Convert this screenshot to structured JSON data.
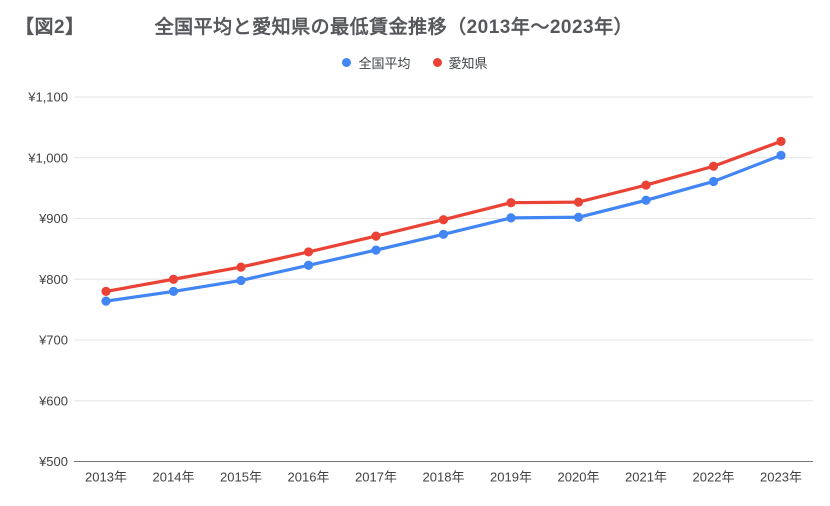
{
  "header": {
    "figure_label": "【図2】",
    "title": "全国平均と愛知県の最低賃金推移（2013年～2023年）"
  },
  "chart_data": {
    "type": "line",
    "title": "全国平均と愛知県の最低賃金推移（2013年～2023年）",
    "categories": [
      "2013年",
      "2014年",
      "2015年",
      "2016年",
      "2017年",
      "2018年",
      "2019年",
      "2020年",
      "2021年",
      "2022年",
      "2023年"
    ],
    "series": [
      {
        "id": "national-average",
        "name": "全国平均",
        "color": "#4285F4",
        "values": [
          764,
          780,
          798,
          823,
          848,
          874,
          901,
          902,
          930,
          961,
          1004
        ]
      },
      {
        "id": "aichi",
        "name": "愛知県",
        "color": "#EA4335",
        "values": [
          780,
          800,
          820,
          845,
          871,
          898,
          926,
          927,
          955,
          986,
          1027
        ]
      }
    ],
    "ylim": [
      500,
      1100
    ],
    "ytick_step": 100,
    "y_tick_prefix": "¥",
    "y_tick_labels": [
      "¥500",
      "¥600",
      "¥700",
      "¥800",
      "¥900",
      "¥1,000",
      "¥1,100"
    ],
    "grid": true,
    "legend_position": "top",
    "colors": {
      "gridline": "#e6e6e6",
      "baseline": "#757575",
      "axis_label": "#424242"
    }
  }
}
